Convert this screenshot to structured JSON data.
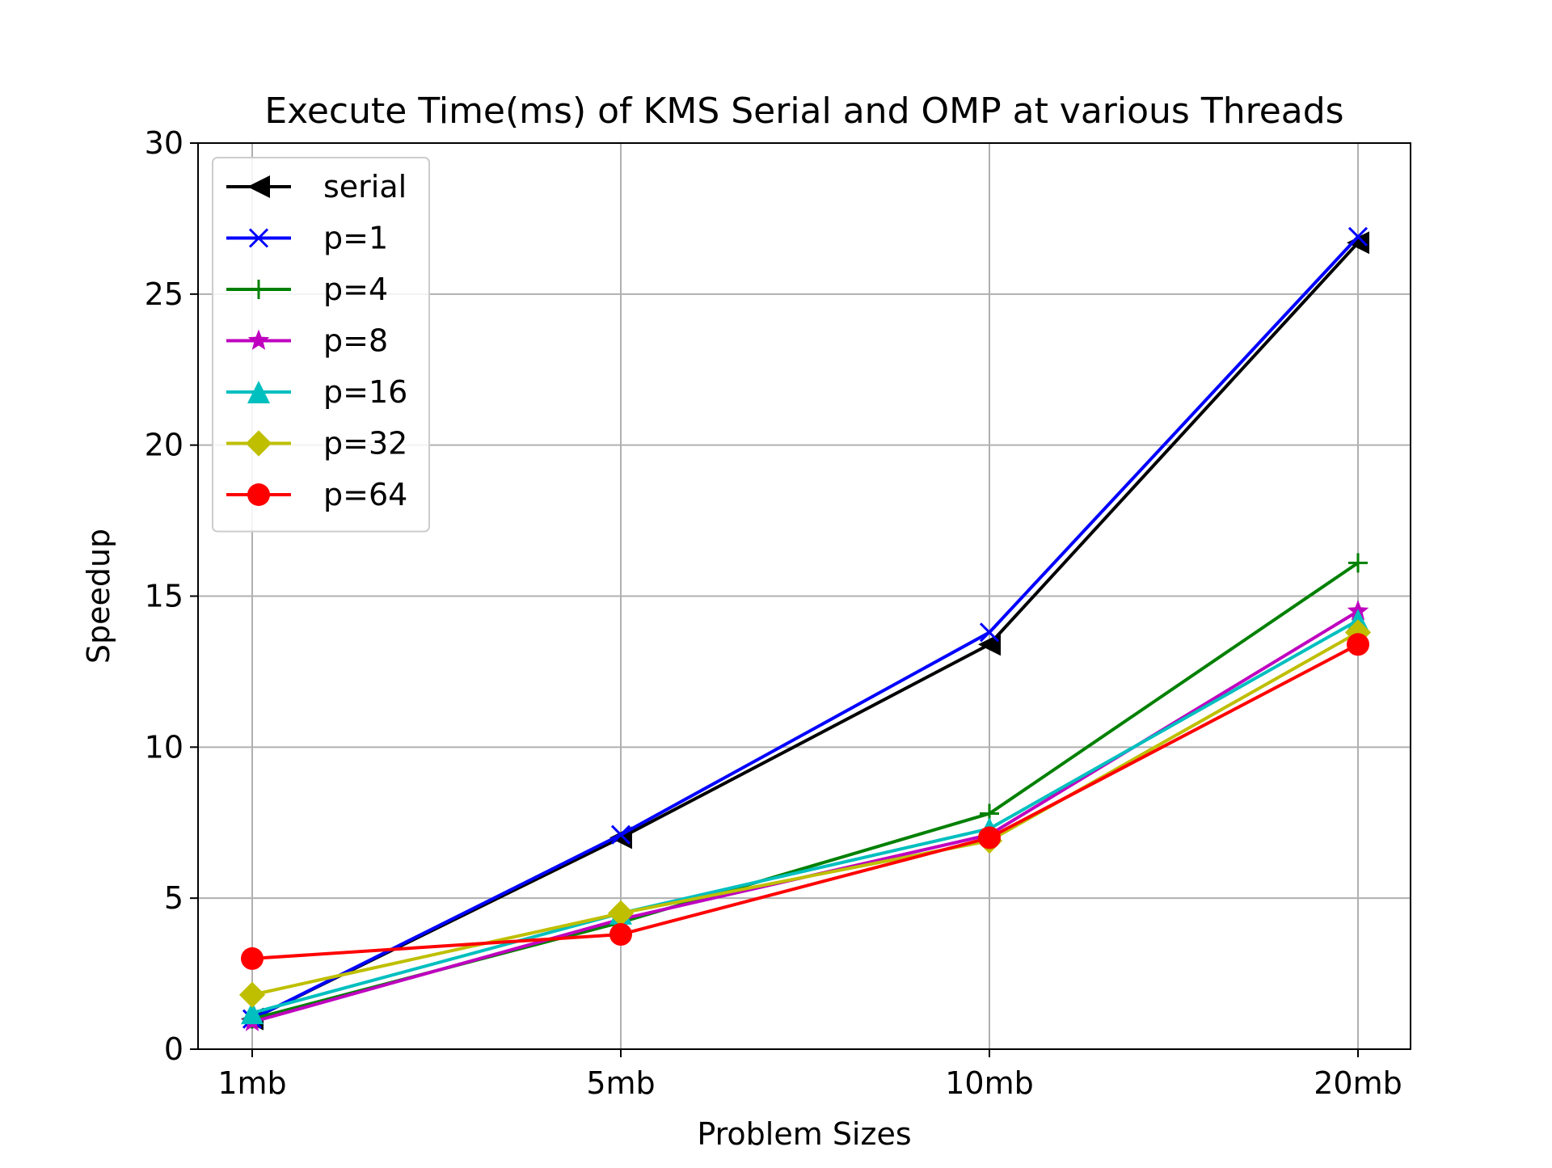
{
  "chart_data": {
    "type": "line",
    "title": "Execute Time(ms) of KMS Serial and OMP at various Threads",
    "xlabel": "Problem Sizes",
    "ylabel": "Speedup",
    "categories": [
      "1mb",
      "5mb",
      "10mb",
      "20mb"
    ],
    "ylim": [
      0,
      30
    ],
    "yticks": [
      0,
      5,
      10,
      15,
      20,
      25,
      30
    ],
    "grid": true,
    "legend_position": "top-left",
    "series": [
      {
        "name": "serial",
        "color": "#000000",
        "marker": "triangle-left",
        "values": [
          1.0,
          7.0,
          13.4,
          26.7
        ]
      },
      {
        "name": "p=1",
        "color": "#0000ff",
        "marker": "x",
        "values": [
          1.0,
          7.1,
          13.8,
          26.9
        ]
      },
      {
        "name": "p=4",
        "color": "#008000",
        "marker": "plus",
        "values": [
          1.0,
          4.2,
          7.8,
          16.1
        ]
      },
      {
        "name": "p=8",
        "color": "#bf00bf",
        "marker": "star",
        "values": [
          0.9,
          4.3,
          7.1,
          14.5
        ]
      },
      {
        "name": "p=16",
        "color": "#00bfbf",
        "marker": "triangle-up",
        "values": [
          1.2,
          4.5,
          7.3,
          14.2
        ]
      },
      {
        "name": "p=32",
        "color": "#bfbf00",
        "marker": "diamond",
        "values": [
          1.8,
          4.5,
          6.9,
          13.8
        ]
      },
      {
        "name": "p=64",
        "color": "#ff0000",
        "marker": "circle",
        "values": [
          3.0,
          3.8,
          7.0,
          13.4
        ]
      }
    ]
  }
}
